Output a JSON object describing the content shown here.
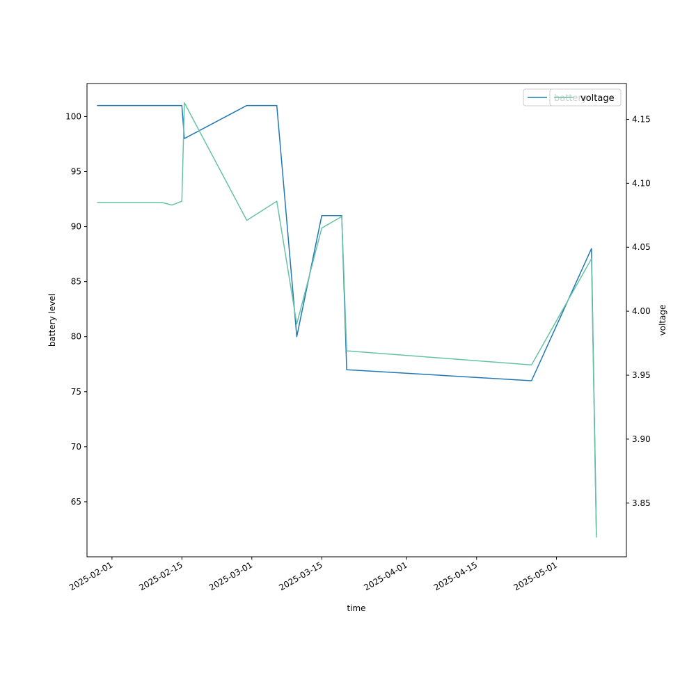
{
  "chart_data": {
    "type": "line",
    "xlabel": "time",
    "ylabel_left": "battery level",
    "ylabel_right": "voltage",
    "x_ticks": [
      "2025-02-01",
      "2025-02-15",
      "2025-03-01",
      "2025-03-15",
      "2025-04-01",
      "2025-04-15",
      "2025-05-01"
    ],
    "x_range": [
      "2025-01-27",
      "2025-05-15"
    ],
    "left_axis": {
      "range": [
        60,
        103
      ],
      "ticks": [
        65,
        70,
        75,
        80,
        85,
        90,
        95,
        100
      ]
    },
    "right_axis": {
      "range": [
        3.808,
        4.178
      ],
      "ticks": [
        "3.85",
        "3.90",
        "3.95",
        "4.00",
        "4.05",
        "4.10",
        "4.15"
      ]
    },
    "grid": false,
    "legend": {
      "position": "top-right",
      "entries": [
        "battery",
        "voltage"
      ]
    },
    "series": [
      {
        "name": "battery",
        "axis": "left",
        "color": "#1f77b4",
        "points": [
          [
            "2025-01-29",
            101
          ],
          [
            "2025-02-15",
            101
          ],
          [
            "2025-02-15T12:00",
            98
          ],
          [
            "2025-02-28",
            101
          ],
          [
            "2025-03-06",
            101
          ],
          [
            "2025-03-10",
            80
          ],
          [
            "2025-03-15",
            91
          ],
          [
            "2025-03-19",
            91
          ],
          [
            "2025-03-20",
            77
          ],
          [
            "2025-04-26",
            76
          ],
          [
            "2025-05-08",
            88
          ],
          [
            "2025-05-09",
            62
          ]
        ]
      },
      {
        "name": "voltage",
        "axis": "right",
        "color": "#66c2a5",
        "points": [
          [
            "2025-01-29",
            4.085
          ],
          [
            "2025-02-11",
            4.085
          ],
          [
            "2025-02-13",
            4.083
          ],
          [
            "2025-02-15",
            4.086
          ],
          [
            "2025-02-15T12:00",
            4.163
          ],
          [
            "2025-02-28",
            4.071
          ],
          [
            "2025-03-06",
            4.086
          ],
          [
            "2025-03-10",
            3.99
          ],
          [
            "2025-03-15",
            4.065
          ],
          [
            "2025-03-19",
            4.074
          ],
          [
            "2025-03-20",
            3.969
          ],
          [
            "2025-04-26",
            3.958
          ],
          [
            "2025-05-08",
            4.041
          ],
          [
            "2025-05-09",
            3.823
          ]
        ]
      }
    ]
  }
}
